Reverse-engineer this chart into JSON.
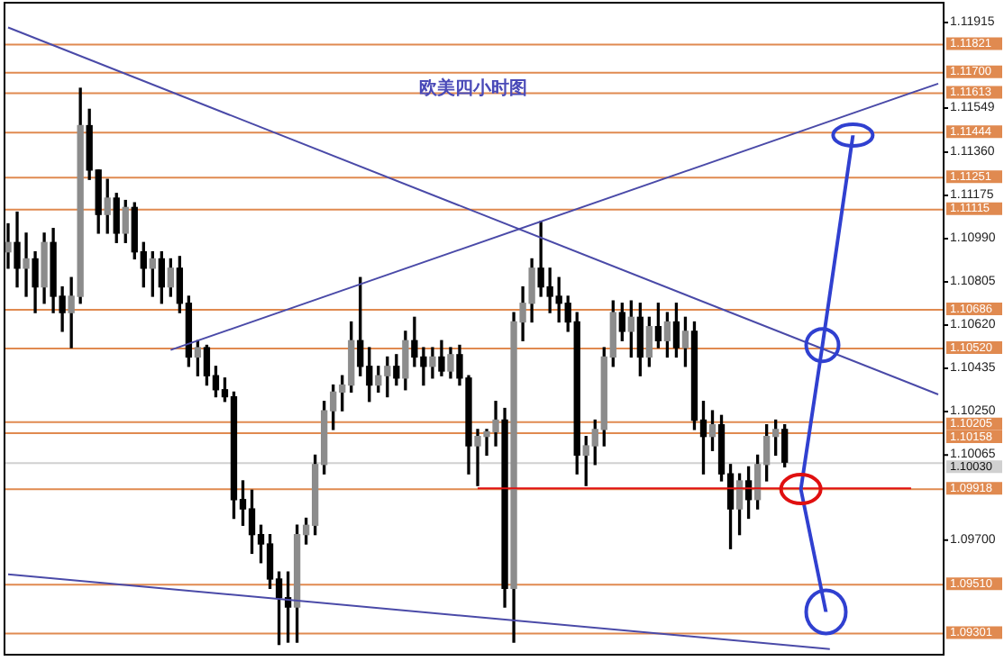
{
  "chart_data": {
    "type": "candlestick",
    "title": "欧美四小时图",
    "color": "#000000",
    "legend": false,
    "grid": false,
    "tick_labels": "y",
    "ylim": [
      1.0921,
      1.12
    ],
    "yticks": [
      1.11915,
      1.11549,
      {
        "value": 1.1136,
        "label": "1.11360"
      },
      1.11175,
      {
        "value": 1.1099,
        "label": "1.10990"
      },
      1.10805,
      {
        "value": 1.1062,
        "label": "1.10620"
      },
      1.10435,
      {
        "value": 1.1025,
        "label": "1.10250"
      },
      1.10065,
      {
        "value": 1.097,
        "label": "1.09700"
      }
    ],
    "categories": [
      null,
      null,
      null,
      null,
      null,
      null,
      null,
      null,
      null,
      null,
      null,
      null,
      null,
      null,
      null,
      null,
      null,
      null,
      null,
      null,
      null,
      null,
      null,
      null,
      null,
      null,
      null,
      null,
      null,
      null,
      null,
      null,
      null,
      null,
      null,
      null,
      null,
      null,
      null,
      null,
      null,
      null,
      null,
      null,
      null,
      null,
      null,
      null,
      null,
      null,
      null,
      null,
      null,
      null,
      null,
      null,
      null,
      null,
      null,
      null,
      null,
      null,
      null,
      null,
      null,
      null,
      null,
      null,
      null,
      null,
      null,
      null,
      null,
      null,
      null,
      null,
      null,
      null,
      null,
      null,
      null,
      null,
      null,
      null,
      null,
      null,
      null,
      null,
      null,
      null,
      null,
      null,
      null,
      null,
      null,
      null,
      null,
      null,
      null,
      null,
      null,
      null,
      null,
      null
    ],
    "colors": [
      "#8c8c8c",
      "#000000",
      "#8c8c8c",
      "#000000",
      "#8c8c8c",
      "#000000",
      "#000000",
      "#8c8c8c",
      "#8c8c8c",
      "#000000",
      "#000000",
      "#8c8c8c",
      "#000000",
      "#8c8c8c",
      "#000000",
      "#000000",
      "#8c8c8c",
      "#000000",
      "#8c8c8c",
      "#000000",
      "#000000",
      "#8c8c8c",
      "#000000",
      "#000000",
      "#000000",
      "#000000",
      "#000000",
      "#000000",
      "#000000",
      "#000000",
      "#000000",
      "#000000",
      "#8c8c8c",
      "#8c8c8c",
      "#8c8c8c",
      "#8c8c8c",
      "#8c8c8c",
      "#8c8c8c",
      "#8c8c8c",
      "#000000",
      "#000000",
      "#8c8c8c",
      "#8c8c8c",
      "#000000",
      "#8c8c8c",
      "#000000",
      "#000000",
      "#8c8c8c",
      "#000000",
      "#8c8c8c",
      "#000000",
      "#000000",
      "#8c8c8c",
      "#8c8c8c",
      "#8c8c8c",
      "#000000",
      "#8c8c8c",
      "#8c8c8c",
      "#8c8c8c",
      "#000000",
      "#000000",
      "#000000",
      "#000000",
      "#000000",
      "#8c8c8c",
      "#8c8c8c",
      "#8c8c8c",
      "#8c8c8c",
      "#000000",
      "#8c8c8c",
      "#000000",
      "#8c8c8c",
      "#000000",
      "#8c8c8c",
      "#000000",
      "#8c8c8c",
      "#000000",
      "#000000",
      "#8c8c8c",
      "#000000",
      "#000000",
      "#8c8c8c",
      "#000000",
      "#8c8c8c",
      "#8c8c8c",
      "#8c8c8c",
      "#000000",
      null,
      null,
      null,
      null,
      null,
      null,
      null,
      null,
      null,
      null,
      null,
      null,
      null,
      null,
      null,
      null,
      null
    ],
    "ohlc": [
      [
        1.1093,
        1.1105,
        1.1086,
        1.1097
      ],
      [
        1.1097,
        1.111,
        1.1078,
        1.1086
      ],
      [
        1.1086,
        1.1101,
        1.1074,
        1.109
      ],
      [
        1.109,
        1.1093,
        1.1067,
        1.1078
      ],
      [
        1.1078,
        1.1101,
        1.1071,
        1.1097
      ],
      [
        1.1097,
        1.1103,
        1.1067,
        1.1074
      ],
      [
        1.1074,
        1.1078,
        1.1059,
        1.1067
      ],
      [
        1.1067,
        1.1082,
        1.1052,
        1.1074
      ],
      [
        1.1074,
        1.1163,
        1.1071,
        1.1147
      ],
      [
        1.1147,
        1.1154,
        1.1124,
        1.1128
      ],
      [
        1.1128,
        1.1128,
        1.1101,
        1.1109
      ],
      [
        1.1109,
        1.1124,
        1.1101,
        1.1116
      ],
      [
        1.1116,
        1.1118,
        1.1097,
        1.1101
      ],
      [
        1.1101,
        1.1115,
        1.1097,
        1.1112
      ],
      [
        1.1112,
        1.1114,
        1.109,
        1.1093
      ],
      [
        1.1093,
        1.1097,
        1.1078,
        1.1086
      ],
      [
        1.1086,
        1.1093,
        1.1074,
        1.109
      ],
      [
        1.109,
        1.1093,
        1.1071,
        1.1078
      ],
      [
        1.1078,
        1.109,
        1.1074,
        1.1086
      ],
      [
        1.1086,
        1.1091,
        1.1067,
        1.1071
      ],
      [
        1.1071,
        1.1074,
        1.1044,
        1.1048
      ],
      [
        1.1048,
        1.1055,
        1.104,
        1.1052
      ],
      [
        1.1052,
        1.1053,
        1.1036,
        1.104
      ],
      [
        1.104,
        1.1044,
        1.1031,
        1.1034
      ],
      [
        1.1034,
        1.1039,
        1.1029,
        1.1031
      ],
      [
        1.1031,
        1.1033,
        1.0979,
        1.0987
      ],
      [
        1.0987,
        1.0995,
        1.0976,
        1.0983
      ],
      [
        1.0983,
        1.0991,
        1.0964,
        1.0972
      ],
      [
        1.0972,
        1.0976,
        1.096,
        1.0968
      ],
      [
        1.0968,
        1.0972,
        1.0949,
        1.0953
      ],
      [
        1.0953,
        1.0956,
        1.0925,
        1.0945
      ],
      [
        1.0945,
        1.0956,
        1.0926,
        1.0941
      ],
      [
        1.0941,
        1.0976,
        1.0926,
        1.0972
      ],
      [
        1.0972,
        1.0979,
        1.0968,
        1.0976
      ],
      [
        1.0976,
        1.1006,
        1.0972,
        1.1002
      ],
      [
        1.1002,
        1.1029,
        1.0998,
        1.1025
      ],
      [
        1.1025,
        1.1036,
        1.1017,
        1.1033
      ],
      [
        1.1033,
        1.104,
        1.1025,
        1.1036
      ],
      [
        1.1036,
        1.1063,
        1.1033,
        1.1055
      ],
      [
        1.1055,
        1.1082,
        1.104,
        1.1044
      ],
      [
        1.1044,
        1.1052,
        1.1029,
        1.1036
      ],
      [
        1.1036,
        1.1044,
        1.1033,
        1.104
      ],
      [
        1.104,
        1.1048,
        1.1031,
        1.1044
      ],
      [
        1.1044,
        1.1049,
        1.1036,
        1.1039
      ],
      [
        1.1039,
        1.1059,
        1.1034,
        1.1055
      ],
      [
        1.1055,
        1.1065,
        1.1044,
        1.1048
      ],
      [
        1.1048,
        1.1052,
        1.1036,
        1.1044
      ],
      [
        1.1044,
        1.1052,
        1.1039,
        1.1048
      ],
      [
        1.1048,
        1.1055,
        1.104,
        1.1042
      ],
      [
        1.1042,
        1.1052,
        1.1039,
        1.1049
      ],
      [
        1.1049,
        1.1053,
        1.1036,
        1.1039
      ],
      [
        1.1039,
        1.104,
        1.0998,
        1.101
      ],
      [
        1.101,
        1.1017,
        1.0993,
        1.1014
      ],
      [
        1.1014,
        1.1017,
        1.1006,
        1.1016
      ],
      [
        1.1016,
        1.1029,
        1.101,
        1.1021
      ],
      [
        1.1021,
        1.1026,
        1.0941,
        1.0949
      ],
      [
        1.0949,
        1.1067,
        1.0926,
        1.1063
      ],
      [
        1.1063,
        1.1078,
        1.1055,
        1.1071
      ],
      [
        1.1071,
        1.109,
        1.1063,
        1.1086
      ],
      [
        1.1086,
        1.1106,
        1.1074,
        1.1078
      ],
      [
        1.1078,
        1.1086,
        1.1067,
        1.1074
      ],
      [
        1.1074,
        1.1082,
        1.1063,
        1.1071
      ],
      [
        1.1071,
        1.1074,
        1.1059,
        1.1063
      ],
      [
        1.1063,
        1.1067,
        1.0998,
        1.1006
      ],
      [
        1.1006,
        1.1014,
        1.0993,
        1.101
      ],
      [
        1.101,
        1.1021,
        1.1002,
        1.1017
      ],
      [
        1.1017,
        1.1052,
        1.101,
        1.1048
      ],
      [
        1.1048,
        1.1072,
        1.1044,
        1.1067
      ],
      [
        1.1067,
        1.1071,
        1.1055,
        1.1059
      ],
      [
        1.1059,
        1.1072,
        1.1048,
        1.1065
      ],
      [
        1.1065,
        1.1071,
        1.104,
        1.1048
      ],
      [
        1.1048,
        1.1065,
        1.1044,
        1.1061
      ],
      [
        1.1061,
        1.1071,
        1.1052,
        1.1055
      ],
      [
        1.1055,
        1.1067,
        1.1048,
        1.1063
      ],
      [
        1.1063,
        1.1071,
        1.1048,
        1.1052
      ],
      [
        1.1052,
        1.1065,
        1.1044,
        1.1059
      ],
      [
        1.1059,
        1.1063,
        1.1017,
        1.1021
      ],
      [
        1.1021,
        1.1029,
        1.0998,
        1.1014
      ],
      [
        1.1014,
        1.1025,
        1.1008,
        1.1019
      ],
      [
        1.1019,
        1.1023,
        1.0995,
        1.0998
      ],
      [
        1.0998,
        1.1002,
        1.0966,
        1.0983
      ],
      [
        1.0983,
        1.0998,
        1.0972,
        1.0995
      ],
      [
        1.0995,
        1.1001,
        1.0979,
        1.0987
      ],
      [
        1.0987,
        1.1006,
        1.0983,
        1.1002
      ],
      [
        1.1002,
        1.1019,
        1.0995,
        1.1014
      ],
      [
        1.1014,
        1.1021,
        1.1006,
        1.1017
      ],
      [
        1.1017,
        1.1019,
        1.1001,
        1.1003
      ],
      null,
      null,
      null,
      null,
      null,
      null,
      null,
      null,
      null,
      null,
      null,
      null,
      null,
      null,
      null,
      null,
      null
    ],
    "series": [
      {
        "type": "line",
        "color": "#4a4aa8",
        "marker": "none",
        "values": [
          1.1189,
          null,
          null,
          null,
          null,
          null,
          null,
          null,
          null,
          null,
          null,
          null,
          null,
          null,
          null,
          null,
          null,
          null,
          null,
          null,
          null,
          null,
          null,
          null,
          null,
          null,
          null,
          null,
          null,
          null,
          null,
          null,
          null,
          null,
          null,
          null,
          null,
          null,
          null,
          null,
          null,
          null,
          null,
          null,
          null,
          null,
          null,
          null,
          null,
          null,
          null,
          null,
          null,
          null,
          null,
          null,
          null,
          null,
          null,
          null,
          null,
          null,
          null,
          null,
          null,
          null,
          null,
          null,
          null,
          null,
          null,
          null,
          null,
          null,
          null,
          null,
          null,
          null,
          null,
          null,
          null,
          null,
          null,
          null,
          null,
          null,
          null,
          null,
          null,
          null,
          null,
          null,
          null,
          null,
          null,
          null,
          null,
          null,
          null,
          null,
          null,
          null,
          null,
          1.1032
        ]
      },
      {
        "type": "line",
        "color": "#4a4aa8",
        "marker": "none",
        "values": [
          null,
          null,
          null,
          null,
          null,
          null,
          null,
          null,
          null,
          null,
          null,
          null,
          null,
          null,
          null,
          null,
          null,
          null,
          1.1051,
          null,
          null,
          null,
          null,
          null,
          null,
          null,
          null,
          null,
          null,
          null,
          null,
          null,
          null,
          null,
          null,
          null,
          null,
          null,
          null,
          null,
          null,
          null,
          null,
          null,
          null,
          null,
          null,
          null,
          null,
          null,
          null,
          null,
          null,
          null,
          null,
          null,
          null,
          null,
          null,
          null,
          null,
          null,
          null,
          null,
          null,
          null,
          null,
          null,
          null,
          null,
          null,
          null,
          null,
          null,
          null,
          null,
          null,
          null,
          null,
          null,
          null,
          null,
          null,
          null,
          null,
          null,
          null,
          null,
          null,
          null,
          null,
          null,
          null,
          null,
          null,
          null,
          null,
          null,
          null,
          null,
          null,
          null,
          null,
          1.1165
        ]
      },
      {
        "type": "line",
        "color": "#4a4aa8",
        "marker": "none",
        "values": [
          1.0955,
          null,
          null,
          null,
          null,
          null,
          null,
          null,
          null,
          null,
          null,
          null,
          null,
          null,
          null,
          null,
          null,
          null,
          null,
          null,
          null,
          null,
          null,
          null,
          null,
          null,
          null,
          null,
          null,
          null,
          null,
          null,
          null,
          null,
          null,
          null,
          null,
          null,
          null,
          null,
          null,
          null,
          null,
          null,
          null,
          null,
          null,
          null,
          null,
          null,
          null,
          null,
          null,
          null,
          null,
          null,
          null,
          null,
          null,
          null,
          null,
          null,
          null,
          null,
          null,
          null,
          null,
          null,
          null,
          null,
          null,
          null,
          null,
          null,
          null,
          null,
          null,
          null,
          null,
          null,
          null,
          null,
          null,
          null,
          null,
          null,
          null,
          null,
          null,
          null,
          null,
          1.0923,
          null,
          null,
          null,
          null,
          null,
          null,
          null,
          null,
          null,
          null,
          null,
          null
        ]
      },
      {
        "type": "line",
        "color": "#e01010",
        "marker": "none",
        "values": [
          null,
          null,
          null,
          null,
          null,
          null,
          null,
          null,
          null,
          null,
          null,
          null,
          null,
          null,
          null,
          null,
          null,
          null,
          null,
          null,
          null,
          null,
          null,
          null,
          null,
          null,
          null,
          null,
          null,
          null,
          null,
          null,
          null,
          null,
          null,
          null,
          null,
          null,
          null,
          null,
          null,
          null,
          null,
          null,
          null,
          null,
          null,
          null,
          null,
          null,
          null,
          null,
          1.09918,
          null,
          null,
          null,
          null,
          null,
          null,
          null,
          null,
          null,
          null,
          null,
          null,
          null,
          null,
          null,
          null,
          null,
          null,
          null,
          null,
          null,
          null,
          null,
          null,
          null,
          null,
          null,
          null,
          null,
          null,
          null,
          null,
          null,
          null,
          null,
          null,
          null,
          null,
          null,
          null,
          null,
          null,
          null,
          null,
          null,
          null,
          null,
          1.09918,
          null,
          null,
          null
        ]
      }
    ],
    "ref_lines": [
      {
        "axis": "y",
        "value": 1.11821,
        "label": "1.11821",
        "color": "#e08a50"
      },
      {
        "axis": "y",
        "value": 1.117,
        "label": "1.11700",
        "color": "#e08a50"
      },
      {
        "axis": "y",
        "value": 1.11613,
        "label": "1.11613",
        "color": "#e08a50"
      },
      {
        "axis": "y",
        "value": 1.11444,
        "label": "1.11444",
        "color": "#e08a50"
      },
      {
        "axis": "y",
        "value": 1.11251,
        "label": "1.11251",
        "color": "#e08a50"
      },
      {
        "axis": "y",
        "value": 1.11115,
        "label": "1.11115",
        "color": "#e08a50"
      },
      {
        "axis": "y",
        "value": 1.10686,
        "label": "1.10686",
        "color": "#e08a50"
      },
      {
        "axis": "y",
        "value": 1.1052,
        "label": "1.10520",
        "color": "#e08a50"
      },
      {
        "axis": "y",
        "value": 1.10205,
        "label": "1.10205",
        "color": "#e08a50"
      },
      {
        "axis": "y",
        "value": 1.10158,
        "label": "1.10158",
        "color": "#e08a50"
      },
      {
        "axis": "y",
        "value": 1.1003,
        "label": "1.10030",
        "color": "#d0d0d0"
      },
      {
        "axis": "y",
        "value": 1.09918,
        "label": "1.09918",
        "color": "#e08a50"
      },
      {
        "axis": "y",
        "value": 1.0951,
        "label": "1.09510",
        "color": "#e08a50"
      },
      {
        "axis": "y",
        "value": 1.09301,
        "label": "1.09301",
        "color": "#e08a50"
      }
    ]
  }
}
